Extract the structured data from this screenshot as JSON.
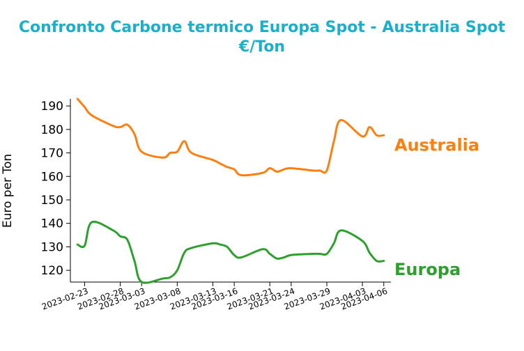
{
  "chart_data": {
    "type": "line",
    "title_line1": "Confronto Carbone termico Europa Spot - Australia Spot",
    "title_line2": "€/Ton",
    "title_color": "#1ab0cc",
    "xlabel": "",
    "ylabel": "Euro per Ton",
    "ylim": [
      115,
      193
    ],
    "yticks": [
      120,
      130,
      140,
      150,
      160,
      170,
      180,
      190
    ],
    "ytick_labels": [
      "120",
      "130",
      "140",
      "150",
      "160",
      "170",
      "180",
      "190"
    ],
    "x": [
      "2023-02-22",
      "2023-02-23",
      "2023-02-24",
      "2023-02-27",
      "2023-02-28",
      "2023-03-01",
      "2023-03-02",
      "2023-03-03",
      "2023-03-06",
      "2023-03-07",
      "2023-03-08",
      "2023-03-09",
      "2023-03-10",
      "2023-03-13",
      "2023-03-14",
      "2023-03-15",
      "2023-03-16",
      "2023-03-17",
      "2023-03-20",
      "2023-03-21",
      "2023-03-22",
      "2023-03-23",
      "2023-03-24",
      "2023-03-27",
      "2023-03-28",
      "2023-03-29",
      "2023-03-30",
      "2023-03-31",
      "2023-04-03",
      "2023-04-04",
      "2023-04-05",
      "2023-04-06"
    ],
    "xticks": [
      "2023-02-23",
      "2023-02-28",
      "2023-03-03",
      "2023-03-08",
      "2023-03-13",
      "2023-03-16",
      "2023-03-21",
      "2023-03-24",
      "2023-03-29",
      "2023-04-03",
      "2023-04-06"
    ],
    "series": [
      {
        "name": "Australia",
        "color": "#ff7f0e",
        "values": [
          193,
          189.5,
          186,
          181.5,
          181,
          182,
          178,
          170.5,
          168,
          170,
          170.5,
          175,
          170,
          167,
          165.5,
          164,
          163,
          160.5,
          161.5,
          163.5,
          162,
          163,
          163.5,
          162.5,
          162.5,
          162.5,
          175,
          184,
          177,
          181,
          177.5,
          177.5
        ]
      },
      {
        "name": "Europa",
        "color": "#2ca02c",
        "values": [
          131,
          130.5,
          140.5,
          137,
          134.5,
          133,
          124,
          115,
          116.5,
          117,
          120,
          127.5,
          129.5,
          131.5,
          131,
          130,
          126.5,
          125.5,
          129,
          127,
          125,
          125.5,
          126.5,
          127,
          127,
          127,
          131.5,
          137,
          132.5,
          127.5,
          124,
          124
        ]
      }
    ]
  }
}
